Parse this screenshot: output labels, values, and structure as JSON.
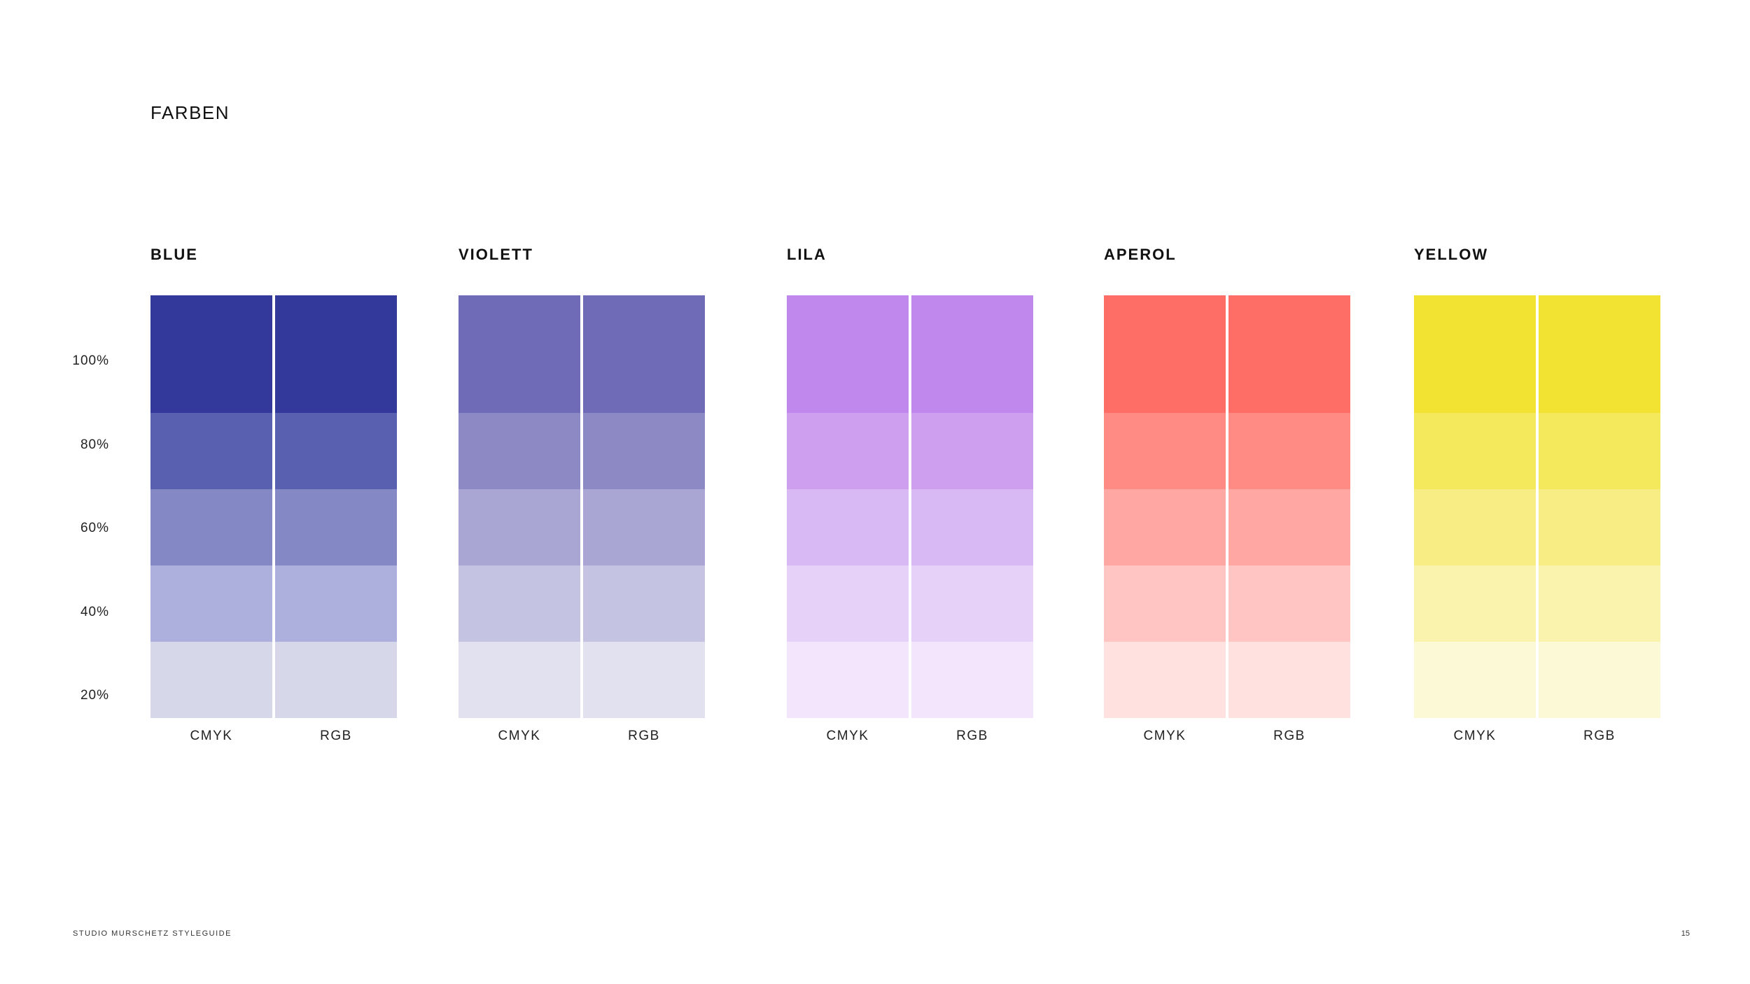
{
  "page": {
    "title": "FARBEN"
  },
  "scale_labels": [
    "100%",
    "80%",
    "60%",
    "40%",
    "20%"
  ],
  "column_labels": {
    "left": "CMYK",
    "right": "RGB"
  },
  "groups": [
    {
      "name": "BLUE",
      "swatches": [
        "#33399a",
        "#5a60b0",
        "#8488c4",
        "#adafdc",
        "#d6d8ea"
      ]
    },
    {
      "name": "VIOLETT",
      "swatches": [
        "#706bb6",
        "#8d89c4",
        "#a9a6d3",
        "#c5c3e2",
        "#e2e1f0"
      ]
    },
    {
      "name": "LILA",
      "swatches": [
        "#c087ec",
        "#cd9fee",
        "#d9b9f3",
        "#e6d2f8",
        "#f3e6fc"
      ]
    },
    {
      "name": "APEROL",
      "swatches": [
        "#ff6e66",
        "#ff8b84",
        "#ffa8a3",
        "#ffc5c2",
        "#ffe2e0"
      ]
    },
    {
      "name": "YELLOW",
      "swatches": [
        "#f2e232",
        "#f4e85c",
        "#f7ed84",
        "#f9f3ad",
        "#fcf9d6"
      ]
    }
  ],
  "footer": {
    "left": "STUDIO MURSCHETZ STYLEGUIDE",
    "page_number": "15"
  }
}
